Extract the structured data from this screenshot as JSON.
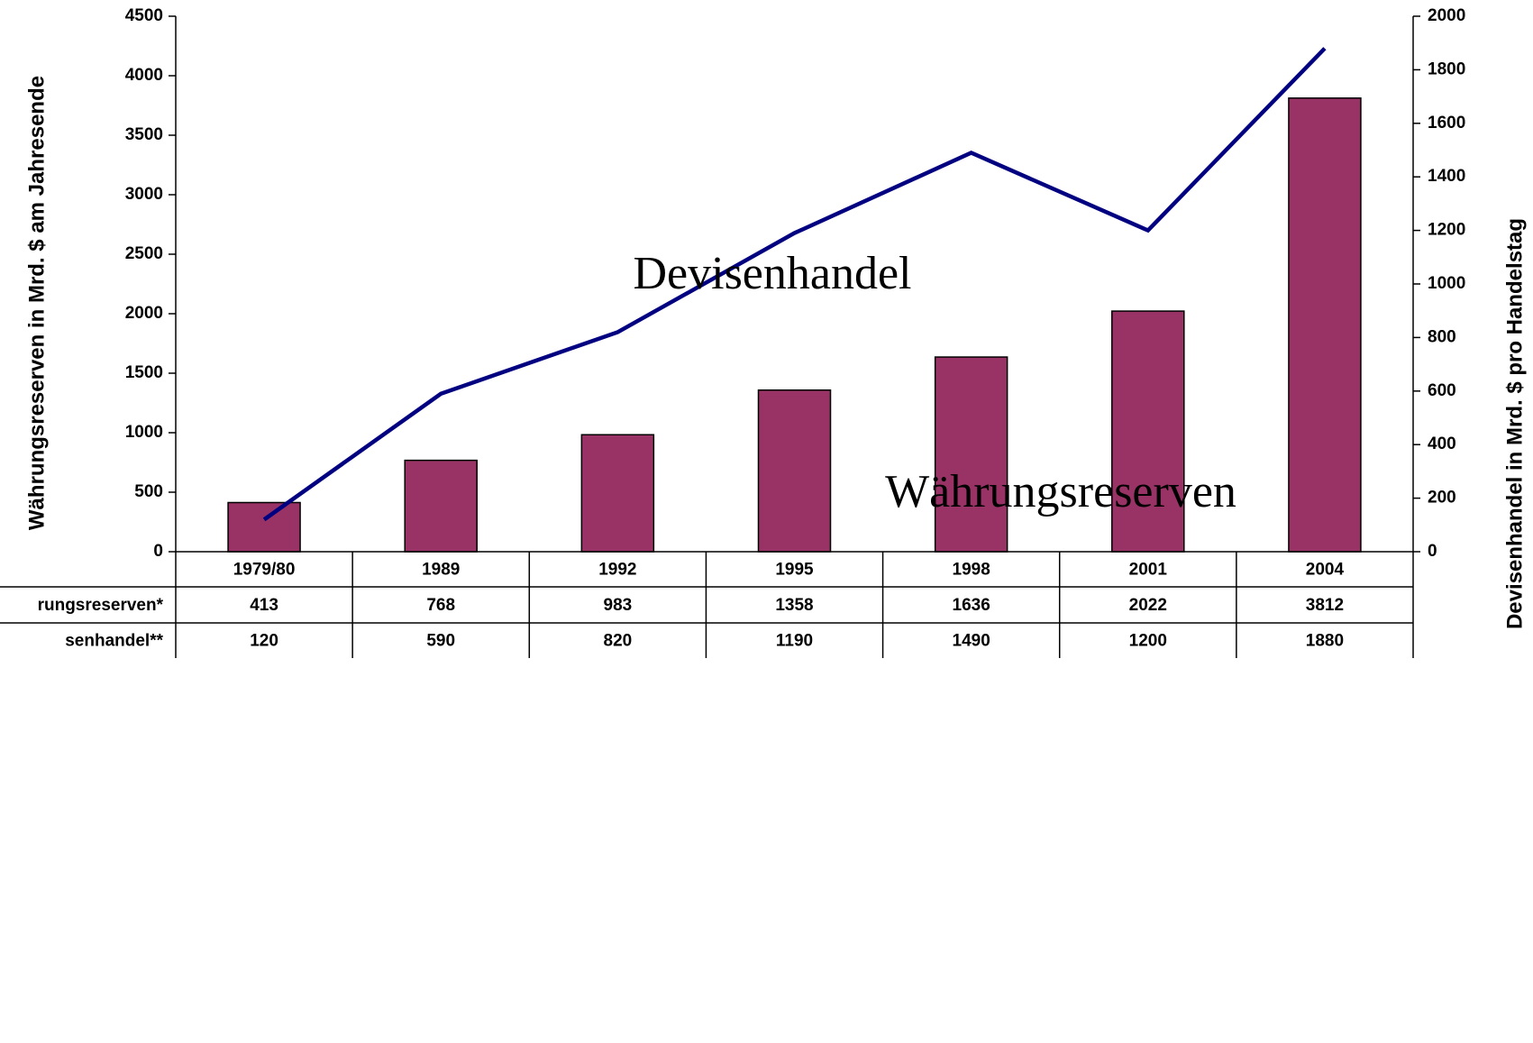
{
  "chart_data": {
    "type": "bar-line",
    "categories": [
      "1979/80",
      "1989",
      "1992",
      "1995",
      "1998",
      "2001",
      "2004"
    ],
    "series": [
      {
        "name": "rungsreserven*",
        "color": "#993366",
        "type": "bar",
        "values": [
          413,
          768,
          983,
          1358,
          1636,
          2022,
          3812
        ]
      },
      {
        "name": "senhandel**",
        "color": "#000080",
        "type": "line",
        "axis": "y2",
        "values": [
          120,
          590,
          820,
          1190,
          1490,
          1200,
          1880
        ]
      }
    ],
    "ylabel": "Währungsreserven in Mrd. $ am Jahresende",
    "y2label": "Devisenhandel in Mrd. $ pro Handelstag",
    "ylim": [
      0,
      4500
    ],
    "yticks": [
      0,
      500,
      1000,
      1500,
      2000,
      2500,
      3000,
      3500,
      4000,
      4500
    ],
    "y2lim": [
      0,
      2000
    ],
    "y2ticks": [
      0,
      200,
      400,
      600,
      800,
      1000,
      1200,
      1400,
      1600,
      1800,
      2000
    ],
    "annotations": [
      "Devisenhandel",
      "Währungsreserven"
    ]
  }
}
